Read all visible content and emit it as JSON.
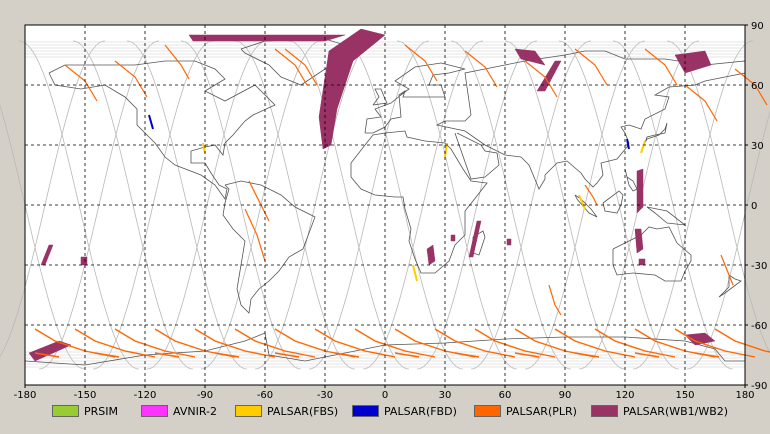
{
  "map": {
    "lon_min": -180,
    "lon_max": 180,
    "lat_min": -90,
    "lat_max": 90,
    "x_ticks": [
      "-180",
      "-150",
      "-120",
      "-90",
      "-60",
      "-30",
      "0",
      "30",
      "60",
      "90",
      "120",
      "150",
      "180"
    ],
    "y_ticks": [
      "90",
      "60",
      "30",
      "0",
      "-30",
      "-60",
      "-90"
    ],
    "grid": "dashed",
    "colors": {
      "background": "#ffffff",
      "frame": "#d4d0c8",
      "coast": "#555555",
      "orbit": "#b8b8b8",
      "grid": "#000000"
    }
  },
  "legend": {
    "items": [
      {
        "label": "PRSIM",
        "color": "#99cc33"
      },
      {
        "label": "AVNIR-2",
        "color": "#ff33ff"
      },
      {
        "label": "PALSAR(FBS)",
        "color": "#ffcc00"
      },
      {
        "label": "PALSAR(FBD)",
        "color": "#0000cc"
      },
      {
        "label": "PALSAR(PLR)",
        "color": "#ff6600"
      },
      {
        "label": "PALSAR(WB1/WB2)",
        "color": "#993366"
      }
    ]
  }
}
